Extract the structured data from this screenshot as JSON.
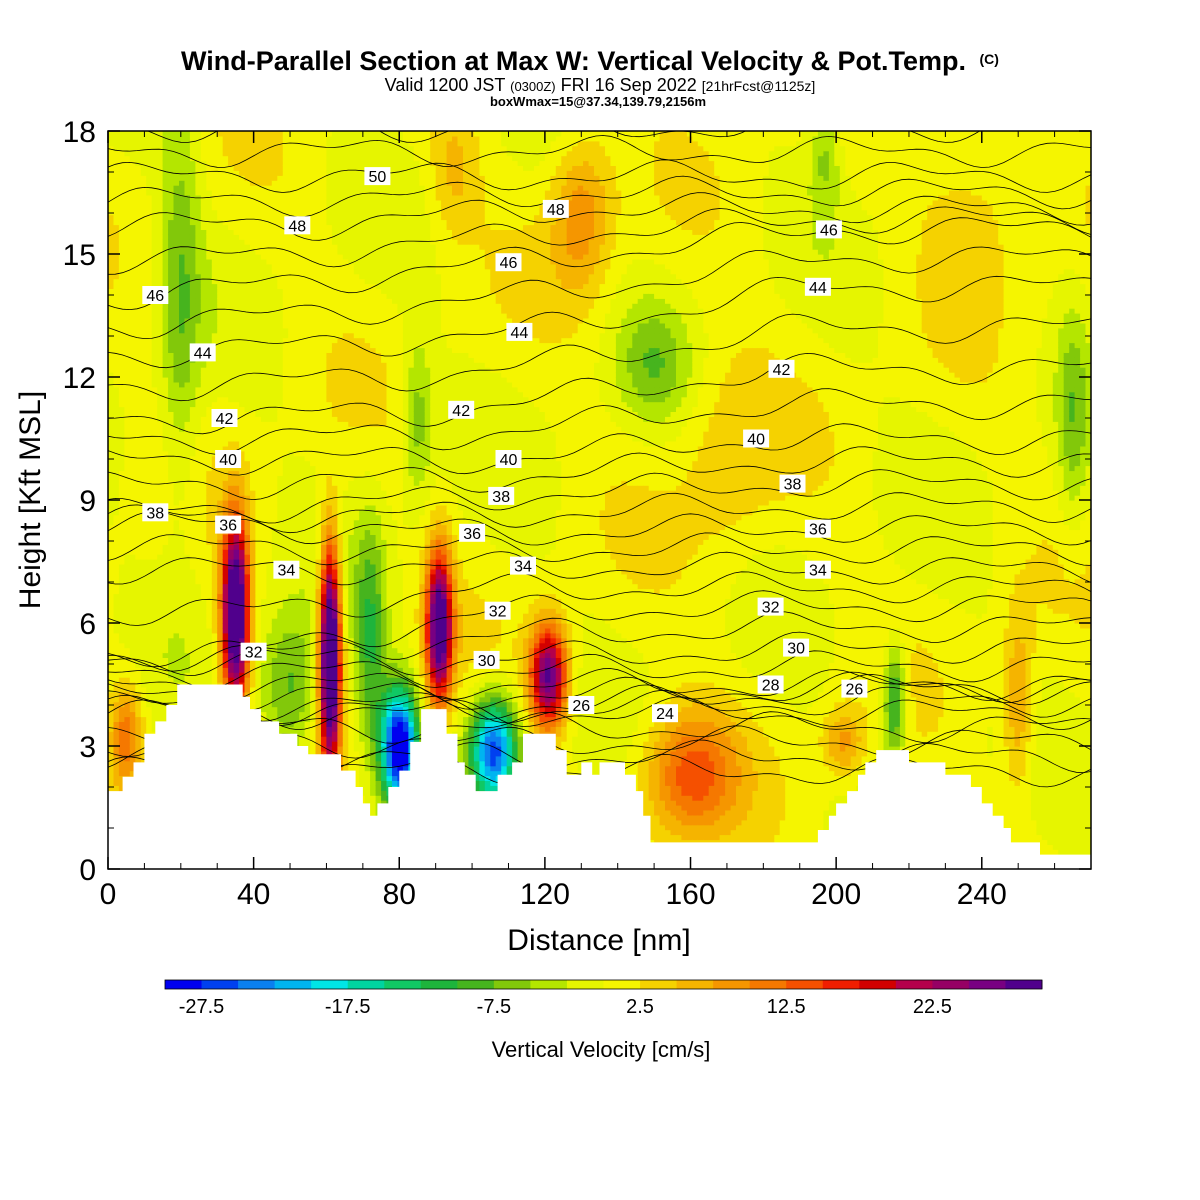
{
  "figure": {
    "title": "Wind-Parallel Section at Max W: Vertical Velocity & Pot.Temp.",
    "title_mark": "(C)",
    "subtitle_valid": "Valid 1200 JST",
    "subtitle_z": "(0300Z)",
    "subtitle_date": "FRI 16 Sep 2022",
    "subtitle_fcst": "[21hrFcst@1125z]",
    "subtitle2": "boxWmax=15@37.34,139.79,2156m"
  },
  "chart_data": {
    "type": "heatmap",
    "xlabel": "Distance [nm]",
    "ylabel": "Height [Kft MSL]",
    "xlim": [
      0,
      270
    ],
    "ylim": [
      0,
      18
    ],
    "x_ticks": [
      0,
      40,
      80,
      120,
      160,
      200,
      240
    ],
    "y_ticks": [
      0,
      3,
      6,
      9,
      12,
      15,
      18
    ],
    "colorbar": {
      "label": "Vertical Velocity [cm/s]",
      "ticks": [
        "-27.5",
        "-17.5",
        "-7.5",
        "2.5",
        "12.5",
        "22.5"
      ],
      "range": [
        -30,
        30
      ],
      "step": 2.5,
      "colors": [
        "#0000f0",
        "#0040f0",
        "#0a80f0",
        "#00b4f0",
        "#00e6e6",
        "#00d4a0",
        "#10c864",
        "#1eb43c",
        "#46b41e",
        "#82c80a",
        "#b4e600",
        "#e6f500",
        "#f5f500",
        "#f5d200",
        "#f5b400",
        "#f59600",
        "#f57800",
        "#f55000",
        "#f01e00",
        "#d20000",
        "#b4004b",
        "#960064",
        "#780082",
        "#50008c"
      ]
    },
    "contour_series": {
      "name": "Pot.Temp.",
      "labels": [
        {
          "value": 50,
          "x": 74,
          "y": 16.9
        },
        {
          "value": 48,
          "x": 52,
          "y": 15.7
        },
        {
          "value": 48,
          "x": 123,
          "y": 16.1
        },
        {
          "value": 46,
          "x": 13,
          "y": 14.0
        },
        {
          "value": 46,
          "x": 110,
          "y": 14.8
        },
        {
          "value": 46,
          "x": 198,
          "y": 15.6
        },
        {
          "value": 44,
          "x": 26,
          "y": 12.6
        },
        {
          "value": 44,
          "x": 113,
          "y": 13.1
        },
        {
          "value": 44,
          "x": 195,
          "y": 14.2
        },
        {
          "value": 42,
          "x": 32,
          "y": 11.0
        },
        {
          "value": 42,
          "x": 97,
          "y": 11.2
        },
        {
          "value": 42,
          "x": 185,
          "y": 12.2
        },
        {
          "value": 40,
          "x": 33,
          "y": 10.0
        },
        {
          "value": 40,
          "x": 110,
          "y": 10.0
        },
        {
          "value": 40,
          "x": 178,
          "y": 10.5
        },
        {
          "value": 38,
          "x": 13,
          "y": 8.7
        },
        {
          "value": 38,
          "x": 108,
          "y": 9.1
        },
        {
          "value": 38,
          "x": 188,
          "y": 9.4
        },
        {
          "value": 36,
          "x": 33,
          "y": 8.4
        },
        {
          "value": 36,
          "x": 100,
          "y": 8.2
        },
        {
          "value": 36,
          "x": 195,
          "y": 8.3
        },
        {
          "value": 34,
          "x": 49,
          "y": 7.3
        },
        {
          "value": 34,
          "x": 114,
          "y": 7.4
        },
        {
          "value": 34,
          "x": 195,
          "y": 7.3
        },
        {
          "value": 32,
          "x": 40,
          "y": 5.3
        },
        {
          "value": 32,
          "x": 107,
          "y": 6.3
        },
        {
          "value": 32,
          "x": 182,
          "y": 6.4
        },
        {
          "value": 30,
          "x": 104,
          "y": 5.1
        },
        {
          "value": 30,
          "x": 189,
          "y": 5.4
        },
        {
          "value": 28,
          "x": 182,
          "y": 4.5
        },
        {
          "value": 26,
          "x": 130,
          "y": 4.0
        },
        {
          "value": 26,
          "x": 205,
          "y": 4.4
        },
        {
          "value": 24,
          "x": 153,
          "y": 3.8
        }
      ]
    },
    "terrain": [
      {
        "x": 0,
        "y": 1.9
      },
      {
        "x": 4,
        "y": 1.9
      },
      {
        "x": 4,
        "y": 2.25
      },
      {
        "x": 7,
        "y": 2.25
      },
      {
        "x": 7,
        "y": 2.6
      },
      {
        "x": 10,
        "y": 2.6
      },
      {
        "x": 10,
        "y": 3.3
      },
      {
        "x": 13,
        "y": 3.3
      },
      {
        "x": 13,
        "y": 3.6
      },
      {
        "x": 16,
        "y": 3.6
      },
      {
        "x": 16,
        "y": 4.0
      },
      {
        "x": 19,
        "y": 4.0
      },
      {
        "x": 19,
        "y": 4.5
      },
      {
        "x": 37,
        "y": 4.5
      },
      {
        "x": 37,
        "y": 4.2
      },
      {
        "x": 39,
        "y": 4.2
      },
      {
        "x": 39,
        "y": 3.9
      },
      {
        "x": 42,
        "y": 3.9
      },
      {
        "x": 42,
        "y": 3.6
      },
      {
        "x": 47,
        "y": 3.6
      },
      {
        "x": 47,
        "y": 3.3
      },
      {
        "x": 52,
        "y": 3.3
      },
      {
        "x": 52,
        "y": 3.0
      },
      {
        "x": 55,
        "y": 3.0
      },
      {
        "x": 55,
        "y": 2.8
      },
      {
        "x": 64,
        "y": 2.8
      },
      {
        "x": 64,
        "y": 2.4
      },
      {
        "x": 68,
        "y": 2.4
      },
      {
        "x": 68,
        "y": 2.0
      },
      {
        "x": 70,
        "y": 2.0
      },
      {
        "x": 70,
        "y": 1.6
      },
      {
        "x": 72,
        "y": 1.6
      },
      {
        "x": 72,
        "y": 1.3
      },
      {
        "x": 74,
        "y": 1.3
      },
      {
        "x": 74,
        "y": 1.6
      },
      {
        "x": 77,
        "y": 1.6
      },
      {
        "x": 77,
        "y": 2.0
      },
      {
        "x": 80,
        "y": 2.0
      },
      {
        "x": 80,
        "y": 2.4
      },
      {
        "x": 83,
        "y": 2.4
      },
      {
        "x": 83,
        "y": 3.1
      },
      {
        "x": 86,
        "y": 3.1
      },
      {
        "x": 86,
        "y": 3.9
      },
      {
        "x": 93,
        "y": 3.9
      },
      {
        "x": 93,
        "y": 3.3
      },
      {
        "x": 96,
        "y": 3.3
      },
      {
        "x": 96,
        "y": 2.6
      },
      {
        "x": 98,
        "y": 2.6
      },
      {
        "x": 98,
        "y": 2.3
      },
      {
        "x": 101,
        "y": 2.3
      },
      {
        "x": 101,
        "y": 1.9
      },
      {
        "x": 107,
        "y": 1.9
      },
      {
        "x": 107,
        "y": 2.3
      },
      {
        "x": 111,
        "y": 2.3
      },
      {
        "x": 111,
        "y": 2.6
      },
      {
        "x": 114,
        "y": 2.6
      },
      {
        "x": 114,
        "y": 3.3
      },
      {
        "x": 123,
        "y": 3.3
      },
      {
        "x": 123,
        "y": 2.9
      },
      {
        "x": 126,
        "y": 2.9
      },
      {
        "x": 126,
        "y": 2.3
      },
      {
        "x": 130,
        "y": 2.3
      },
      {
        "x": 130,
        "y": 2.6
      },
      {
        "x": 133,
        "y": 2.6
      },
      {
        "x": 133,
        "y": 2.3
      },
      {
        "x": 135,
        "y": 2.3
      },
      {
        "x": 135,
        "y": 2.6
      },
      {
        "x": 142,
        "y": 2.6
      },
      {
        "x": 142,
        "y": 2.3
      },
      {
        "x": 145,
        "y": 2.3
      },
      {
        "x": 145,
        "y": 1.9
      },
      {
        "x": 147,
        "y": 1.9
      },
      {
        "x": 147,
        "y": 1.3
      },
      {
        "x": 149,
        "y": 1.3
      },
      {
        "x": 149,
        "y": 0.65
      },
      {
        "x": 195,
        "y": 0.65
      },
      {
        "x": 195,
        "y": 0.95
      },
      {
        "x": 198,
        "y": 0.95
      },
      {
        "x": 198,
        "y": 1.3
      },
      {
        "x": 200,
        "y": 1.3
      },
      {
        "x": 200,
        "y": 1.6
      },
      {
        "x": 203,
        "y": 1.6
      },
      {
        "x": 203,
        "y": 1.9
      },
      {
        "x": 206,
        "y": 1.9
      },
      {
        "x": 206,
        "y": 2.3
      },
      {
        "x": 208,
        "y": 2.3
      },
      {
        "x": 208,
        "y": 2.6
      },
      {
        "x": 211,
        "y": 2.6
      },
      {
        "x": 211,
        "y": 2.9
      },
      {
        "x": 220,
        "y": 2.9
      },
      {
        "x": 220,
        "y": 2.6
      },
      {
        "x": 230,
        "y": 2.6
      },
      {
        "x": 230,
        "y": 2.3
      },
      {
        "x": 237,
        "y": 2.3
      },
      {
        "x": 237,
        "y": 2.0
      },
      {
        "x": 240,
        "y": 2.0
      },
      {
        "x": 240,
        "y": 1.6
      },
      {
        "x": 243,
        "y": 1.6
      },
      {
        "x": 243,
        "y": 1.3
      },
      {
        "x": 246,
        "y": 1.3
      },
      {
        "x": 246,
        "y": 1.0
      },
      {
        "x": 248,
        "y": 1.0
      },
      {
        "x": 248,
        "y": 0.65
      },
      {
        "x": 256,
        "y": 0.65
      },
      {
        "x": 256,
        "y": 0.35
      },
      {
        "x": 269,
        "y": 0.35
      }
    ],
    "velocity_features": [
      {
        "x": 35,
        "y": 6.2,
        "w": 37,
        "sx": 2.6,
        "sy": 1.6
      },
      {
        "x": 61,
        "y": 5.2,
        "w": 40,
        "sx": 2.0,
        "sy": 1.9
      },
      {
        "x": 91,
        "y": 5.9,
        "w": 32,
        "sx": 2.5,
        "sy": 1.3
      },
      {
        "x": 121,
        "y": 4.7,
        "w": 28,
        "sx": 3.6,
        "sy": 0.9
      },
      {
        "x": 80,
        "y": 3.0,
        "w": -33,
        "sx": 3.5,
        "sy": 1.0
      },
      {
        "x": 106,
        "y": 2.9,
        "w": -27,
        "sx": 4.5,
        "sy": 0.9
      },
      {
        "x": 160,
        "y": 2.3,
        "w": 13,
        "sx": 9.0,
        "sy": 1.1
      },
      {
        "x": 202,
        "y": 3.1,
        "w": 8,
        "sx": 4.0,
        "sy": 0.6
      },
      {
        "x": 5,
        "y": 3.3,
        "w": 11,
        "sx": 3.0,
        "sy": 0.9
      },
      {
        "x": 250,
        "y": 4.0,
        "w": 8,
        "sx": 3.0,
        "sy": 1.6
      },
      {
        "x": 50,
        "y": 4.4,
        "w": -10,
        "sx": 6.0,
        "sy": 1.3
      },
      {
        "x": 72,
        "y": 5.6,
        "w": -10,
        "sx": 3.0,
        "sy": 2.0
      },
      {
        "x": 216,
        "y": 4.1,
        "w": -13,
        "sx": 2.2,
        "sy": 1.0
      },
      {
        "x": 20,
        "y": 14.0,
        "w": -7,
        "sx": 4.0,
        "sy": 3.8
      },
      {
        "x": 85,
        "y": 11.0,
        "w": -7,
        "sx": 3.0,
        "sy": 1.4
      },
      {
        "x": 150,
        "y": 12.3,
        "w": -6,
        "sx": 7.0,
        "sy": 1.0
      },
      {
        "x": 197,
        "y": 17.5,
        "w": -6,
        "sx": 3.0,
        "sy": 1.0
      },
      {
        "x": 130,
        "y": 16.0,
        "w": 9,
        "sx": 6.0,
        "sy": 1.4
      },
      {
        "x": 95,
        "y": 17.0,
        "w": 5,
        "sx": 5.0,
        "sy": 1.2
      },
      {
        "x": 170,
        "y": 10.0,
        "w": 4,
        "sx": 10.0,
        "sy": 2.0
      },
      {
        "x": 240,
        "y": 16.5,
        "w": 4,
        "sx": 12.0,
        "sy": 1.6
      },
      {
        "x": 265,
        "y": 11.0,
        "w": -6,
        "sx": 3.0,
        "sy": 2.0
      }
    ]
  }
}
